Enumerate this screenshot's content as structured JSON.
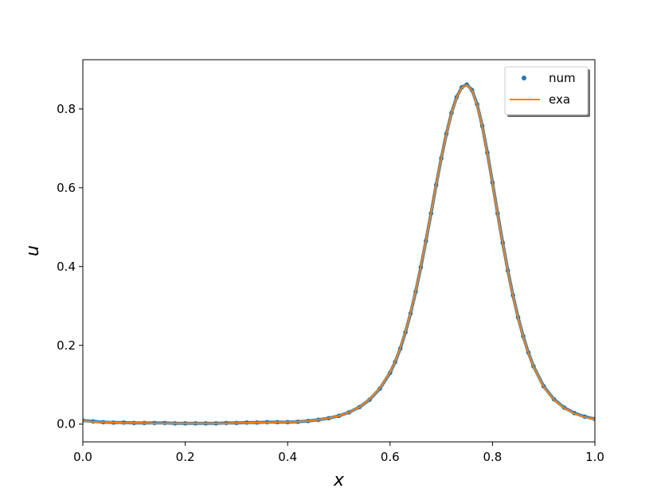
{
  "chart_data": {
    "type": "line",
    "title": "",
    "xlabel": "x",
    "ylabel": "u",
    "xlim": [
      0.0,
      1.0
    ],
    "ylim": [
      -0.045,
      0.925
    ],
    "xticks": [
      0.0,
      0.2,
      0.4,
      0.6,
      0.8,
      1.0
    ],
    "xtick_labels": [
      "0.0",
      "0.2",
      "0.4",
      "0.6",
      "0.8",
      "1.0"
    ],
    "yticks": [
      0.0,
      0.2,
      0.4,
      0.6,
      0.8
    ],
    "ytick_labels": [
      "0.0",
      "0.2",
      "0.4",
      "0.6",
      "0.8"
    ],
    "grid": false,
    "legend_position": "top-right",
    "series": [
      {
        "name": "num",
        "style": "markers",
        "color": "#1f77b4",
        "x": [
          0.0,
          0.02,
          0.04,
          0.06,
          0.08,
          0.1,
          0.12,
          0.14,
          0.16,
          0.18,
          0.2,
          0.22,
          0.24,
          0.26,
          0.28,
          0.3,
          0.32,
          0.34,
          0.36,
          0.38,
          0.4,
          0.42,
          0.44,
          0.46,
          0.48,
          0.5,
          0.52,
          0.54,
          0.56,
          0.58,
          0.6,
          0.61,
          0.62,
          0.63,
          0.64,
          0.65,
          0.66,
          0.67,
          0.68,
          0.69,
          0.7,
          0.71,
          0.72,
          0.73,
          0.74,
          0.75,
          0.76,
          0.77,
          0.78,
          0.79,
          0.8,
          0.81,
          0.82,
          0.83,
          0.84,
          0.85,
          0.86,
          0.87,
          0.88,
          0.9,
          0.92,
          0.94,
          0.96,
          0.98,
          1.0
        ],
        "y": [
          0.009,
          0.007,
          0.005,
          0.004,
          0.004,
          0.003,
          0.003,
          0.003,
          0.003,
          0.002,
          0.002,
          0.002,
          0.002,
          0.002,
          0.003,
          0.003,
          0.004,
          0.004,
          0.005,
          0.005,
          0.005,
          0.006,
          0.008,
          0.011,
          0.015,
          0.021,
          0.03,
          0.043,
          0.062,
          0.09,
          0.13,
          0.158,
          0.192,
          0.233,
          0.281,
          0.336,
          0.398,
          0.465,
          0.535,
          0.607,
          0.675,
          0.737,
          0.79,
          0.83,
          0.855,
          0.862,
          0.848,
          0.812,
          0.757,
          0.689,
          0.613,
          0.535,
          0.46,
          0.39,
          0.327,
          0.271,
          0.223,
          0.182,
          0.147,
          0.096,
          0.063,
          0.042,
          0.028,
          0.019,
          0.013
        ]
      },
      {
        "name": "exa",
        "style": "line",
        "color": "#ff7f0e",
        "x": [
          0.0,
          0.02,
          0.04,
          0.06,
          0.08,
          0.1,
          0.12,
          0.14,
          0.16,
          0.18,
          0.2,
          0.22,
          0.24,
          0.26,
          0.28,
          0.3,
          0.32,
          0.34,
          0.36,
          0.38,
          0.4,
          0.42,
          0.44,
          0.46,
          0.48,
          0.5,
          0.52,
          0.54,
          0.56,
          0.58,
          0.6,
          0.61,
          0.62,
          0.63,
          0.64,
          0.65,
          0.66,
          0.67,
          0.68,
          0.69,
          0.7,
          0.71,
          0.72,
          0.73,
          0.74,
          0.75,
          0.76,
          0.77,
          0.78,
          0.79,
          0.8,
          0.81,
          0.82,
          0.83,
          0.84,
          0.85,
          0.86,
          0.87,
          0.88,
          0.9,
          0.92,
          0.94,
          0.96,
          0.98,
          1.0
        ],
        "y": [
          0.008,
          0.006,
          0.005,
          0.004,
          0.003,
          0.003,
          0.003,
          0.002,
          0.002,
          0.002,
          0.002,
          0.002,
          0.002,
          0.002,
          0.002,
          0.003,
          0.003,
          0.004,
          0.004,
          0.005,
          0.005,
          0.006,
          0.008,
          0.011,
          0.015,
          0.021,
          0.03,
          0.043,
          0.063,
          0.091,
          0.131,
          0.159,
          0.193,
          0.234,
          0.282,
          0.337,
          0.399,
          0.466,
          0.536,
          0.607,
          0.675,
          0.736,
          0.789,
          0.829,
          0.854,
          0.861,
          0.847,
          0.811,
          0.756,
          0.688,
          0.612,
          0.534,
          0.459,
          0.389,
          0.326,
          0.27,
          0.222,
          0.181,
          0.146,
          0.095,
          0.062,
          0.041,
          0.027,
          0.018,
          0.012
        ]
      }
    ]
  }
}
